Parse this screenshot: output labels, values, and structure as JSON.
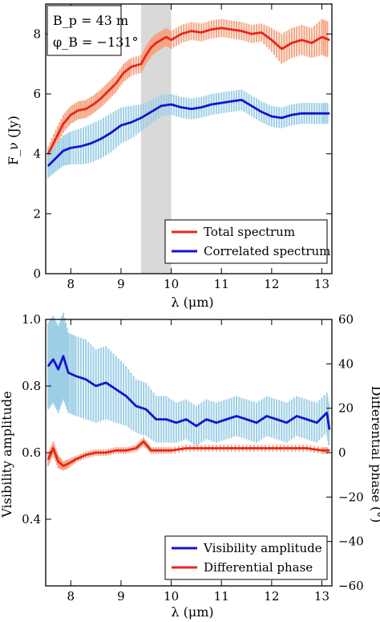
{
  "chart_data": [
    {
      "type": "line",
      "xlabel": "λ (μm)",
      "ylabel": "F_ν (Jy)",
      "xlim": [
        7.5,
        13.2
      ],
      "ylim": [
        0,
        9.0
      ],
      "xticks": [
        8,
        9,
        10,
        11,
        12,
        13
      ],
      "yticks": [
        0,
        2,
        4,
        6,
        8
      ],
      "grid": false,
      "legend_position": "lower-right",
      "annotation": {
        "baseline": "B_p = 43 m",
        "pa": "φ_B = −131°"
      },
      "shaded_region": {
        "x": [
          9.4,
          10.0
        ],
        "color": "#d9d9d9"
      },
      "series": [
        {
          "name": "Total spectrum",
          "color": "#e8261c",
          "error_color": "#f4a582",
          "x": [
            7.55,
            7.7,
            7.85,
            8.0,
            8.15,
            8.3,
            8.45,
            8.6,
            8.75,
            8.9,
            9.05,
            9.2,
            9.4,
            9.5,
            9.6,
            9.7,
            9.8,
            9.9,
            10.0,
            10.2,
            10.4,
            10.6,
            10.8,
            11.0,
            11.2,
            11.4,
            11.6,
            11.8,
            12.0,
            12.2,
            12.4,
            12.6,
            12.8,
            13.0,
            13.15
          ],
          "y": [
            4.0,
            4.5,
            5.0,
            5.3,
            5.45,
            5.5,
            5.65,
            5.85,
            6.1,
            6.35,
            6.7,
            6.9,
            7.0,
            7.3,
            7.55,
            7.7,
            7.8,
            7.9,
            7.8,
            8.0,
            8.1,
            8.05,
            8.15,
            8.2,
            8.15,
            8.1,
            8.0,
            8.05,
            7.8,
            7.5,
            7.7,
            7.8,
            7.7,
            7.9,
            7.8
          ],
          "err": [
            0.25,
            0.3,
            0.3,
            0.3,
            0.3,
            0.3,
            0.3,
            0.3,
            0.3,
            0.3,
            0.3,
            0.3,
            0.3,
            0.3,
            0.3,
            0.3,
            0.3,
            0.3,
            0.3,
            0.3,
            0.3,
            0.3,
            0.3,
            0.3,
            0.3,
            0.3,
            0.3,
            0.3,
            0.4,
            0.5,
            0.5,
            0.5,
            0.5,
            0.6,
            0.6
          ]
        },
        {
          "name": "Correlated spectrum",
          "color": "#1414cc",
          "error_color": "#9dcfe6",
          "x": [
            7.55,
            7.7,
            7.85,
            8.0,
            8.2,
            8.4,
            8.6,
            8.8,
            9.0,
            9.2,
            9.4,
            9.6,
            9.8,
            10.0,
            10.2,
            10.4,
            10.6,
            10.8,
            11.0,
            11.2,
            11.4,
            11.6,
            11.8,
            12.0,
            12.2,
            12.4,
            12.6,
            12.8,
            13.0,
            13.15
          ],
          "y": [
            3.6,
            3.85,
            4.1,
            4.2,
            4.25,
            4.35,
            4.5,
            4.7,
            4.95,
            5.05,
            5.2,
            5.4,
            5.6,
            5.65,
            5.55,
            5.5,
            5.55,
            5.65,
            5.7,
            5.75,
            5.8,
            5.6,
            5.4,
            5.25,
            5.2,
            5.3,
            5.35,
            5.35,
            5.35,
            5.35
          ],
          "err": [
            0.4,
            0.45,
            0.5,
            0.55,
            0.6,
            0.65,
            0.65,
            0.65,
            0.6,
            0.55,
            0.45,
            0.4,
            0.35,
            0.35,
            0.35,
            0.35,
            0.35,
            0.35,
            0.35,
            0.35,
            0.35,
            0.35,
            0.35,
            0.35,
            0.35,
            0.35,
            0.35,
            0.35,
            0.35,
            0.35
          ]
        }
      ]
    },
    {
      "type": "line",
      "xlabel": "λ (μm)",
      "ylabel": "Visibility amplitude",
      "y2label": "Differential phase (°)",
      "xlim": [
        7.5,
        13.2
      ],
      "ylim": [
        0.2,
        1.0
      ],
      "y2lim": [
        -60,
        60
      ],
      "xticks": [
        8,
        9,
        10,
        11,
        12,
        13
      ],
      "yticks": [
        0.4,
        0.6,
        0.8,
        1.0
      ],
      "y2ticks": [
        -60,
        -40,
        -20,
        0,
        20,
        40,
        60
      ],
      "grid": false,
      "legend_position": "lower-right",
      "series": [
        {
          "name": "Visibility amplitude",
          "axis": "left",
          "color": "#1414cc",
          "error_color": "#9dcfe6",
          "x": [
            7.55,
            7.65,
            7.75,
            7.85,
            7.95,
            8.1,
            8.3,
            8.5,
            8.7,
            8.9,
            9.1,
            9.3,
            9.5,
            9.7,
            9.9,
            10.1,
            10.3,
            10.5,
            10.7,
            10.9,
            11.1,
            11.3,
            11.5,
            11.7,
            11.9,
            12.1,
            12.3,
            12.5,
            12.7,
            12.9,
            13.1,
            13.15
          ],
          "y": [
            0.86,
            0.88,
            0.85,
            0.89,
            0.84,
            0.83,
            0.82,
            0.8,
            0.81,
            0.79,
            0.77,
            0.74,
            0.73,
            0.7,
            0.7,
            0.69,
            0.7,
            0.68,
            0.7,
            0.69,
            0.7,
            0.71,
            0.7,
            0.69,
            0.71,
            0.7,
            0.69,
            0.71,
            0.7,
            0.69,
            0.72,
            0.67
          ],
          "err": [
            0.13,
            0.13,
            0.13,
            0.13,
            0.12,
            0.12,
            0.12,
            0.11,
            0.11,
            0.1,
            0.09,
            0.08,
            0.08,
            0.07,
            0.07,
            0.06,
            0.06,
            0.06,
            0.06,
            0.06,
            0.06,
            0.06,
            0.06,
            0.06,
            0.06,
            0.06,
            0.06,
            0.06,
            0.06,
            0.06,
            0.06,
            0.06
          ]
        },
        {
          "name": "Differential phase",
          "axis": "right",
          "color": "#e8261c",
          "error_color": "#f4a582",
          "x": [
            7.55,
            7.65,
            7.75,
            7.85,
            7.95,
            8.1,
            8.3,
            8.5,
            8.7,
            8.9,
            9.1,
            9.3,
            9.45,
            9.6,
            9.8,
            10.0,
            10.3,
            10.6,
            10.9,
            11.2,
            11.5,
            11.8,
            12.1,
            12.4,
            12.7,
            13.0,
            13.15
          ],
          "y": [
            -3,
            2,
            -4,
            -6,
            -5,
            -3,
            -1,
            0,
            0,
            1,
            1,
            2,
            5,
            1,
            1,
            1,
            2,
            2,
            2,
            2,
            2,
            2,
            2,
            2,
            2,
            1,
            1
          ],
          "err": [
            3,
            3,
            3,
            2,
            2,
            1.5,
            1.5,
            1.5,
            1.5,
            1.5,
            1.5,
            1.5,
            2,
            1.5,
            1.5,
            1.5,
            1.5,
            1.5,
            1.5,
            1.5,
            1.5,
            1.5,
            1.5,
            1.5,
            1.5,
            1.5,
            1.5
          ]
        }
      ]
    }
  ]
}
